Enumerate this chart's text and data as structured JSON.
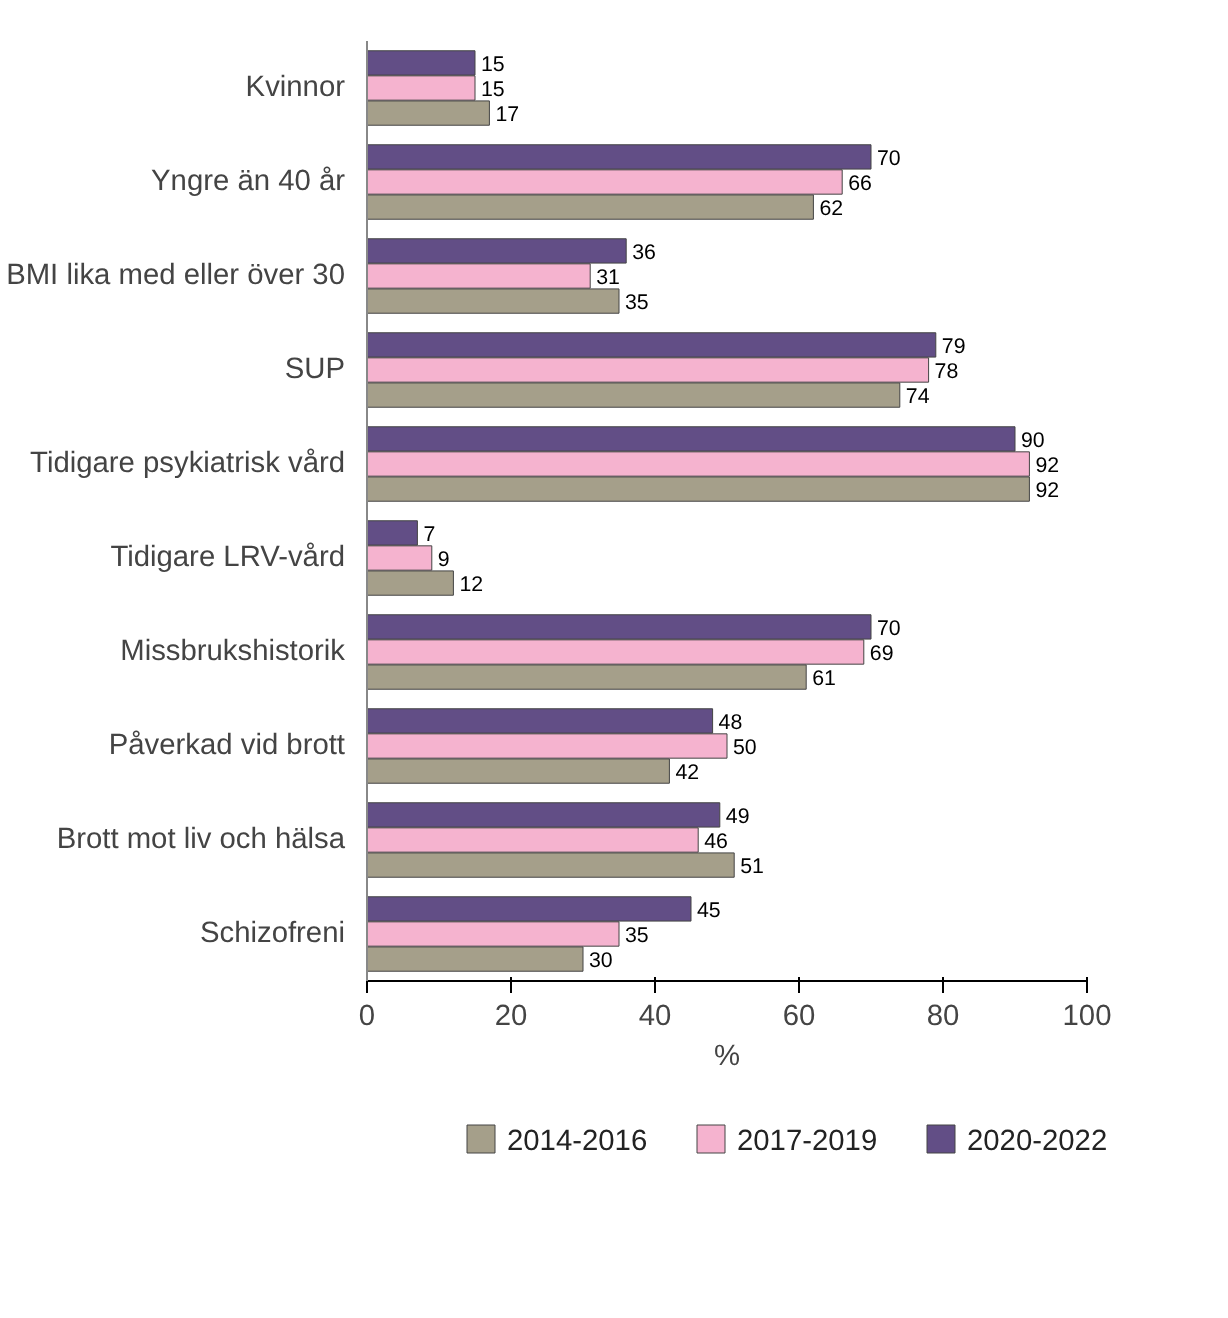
{
  "chart_data": {
    "type": "bar",
    "orientation": "horizontal",
    "xlabel": "%",
    "categories": [
      "Kvinnor",
      "Yngre än 40 år",
      "BMI lika med eller över 30",
      "SUP",
      "Tidigare psykiatrisk vård",
      "Tidigare LRV-vård",
      "Missbrukshistorik",
      "Påverkad vid brott",
      "Brott mot liv och hälsa",
      "Schizofreni"
    ],
    "series": [
      {
        "name": "2014-2016",
        "color": "#a59f8a",
        "values": [
          17,
          62,
          35,
          74,
          92,
          12,
          61,
          42,
          51,
          30
        ]
      },
      {
        "name": "2017-2019",
        "color": "#f5b3cf",
        "values": [
          15,
          66,
          31,
          78,
          92,
          9,
          69,
          50,
          46,
          35
        ]
      },
      {
        "name": "2020-2022",
        "color": "#624e86",
        "values": [
          15,
          70,
          36,
          79,
          90,
          7,
          70,
          48,
          49,
          45
        ]
      }
    ],
    "xlim": [
      0,
      100
    ],
    "xticks": [
      0,
      20,
      40,
      60,
      80,
      100
    ],
    "data_labels": true,
    "legend": "bottom",
    "grid": false
  }
}
